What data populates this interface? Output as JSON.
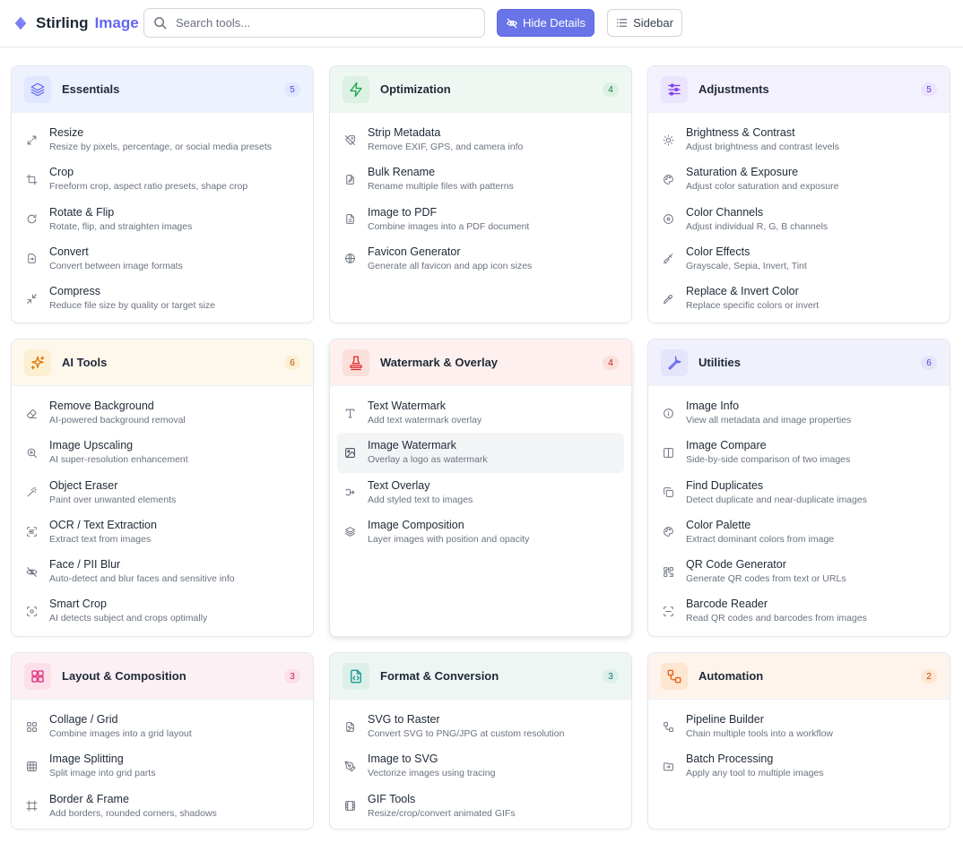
{
  "header": {
    "brand_primary": "Stirling",
    "brand_secondary": "Image",
    "search_placeholder": "Search tools...",
    "hide_details_label": "Hide Details",
    "sidebar_label": "Sidebar"
  },
  "colors": {
    "accent": "#6874e8",
    "brand_secondary": "#6366f1"
  },
  "categories": [
    {
      "title": "Essentials",
      "count": "5",
      "icon": "layers-icon",
      "head_bg": "#eef2ff",
      "icon_bg": "#e0e7ff",
      "icon_color": "#6366f1",
      "badge_bg": "#e0e7ff",
      "badge_color": "#4f46e5",
      "items": [
        {
          "name": "Resize",
          "desc": "Resize by pixels, percentage, or social media presets",
          "icon": "resize-icon"
        },
        {
          "name": "Crop",
          "desc": "Freeform crop, aspect ratio presets, shape crop",
          "icon": "crop-icon"
        },
        {
          "name": "Rotate & Flip",
          "desc": "Rotate, flip, and straighten images",
          "icon": "rotate-icon"
        },
        {
          "name": "Convert",
          "desc": "Convert between image formats",
          "icon": "convert-icon"
        },
        {
          "name": "Compress",
          "desc": "Reduce file size by quality or target size",
          "icon": "compress-icon"
        }
      ]
    },
    {
      "title": "Optimization",
      "count": "4",
      "icon": "bolt-icon",
      "head_bg": "#eef7f1",
      "icon_bg": "#dcf0e3",
      "icon_color": "#16a34a",
      "badge_bg": "#dcf0e3",
      "badge_color": "#15803d",
      "items": [
        {
          "name": "Strip Metadata",
          "desc": "Remove EXIF, GPS, and camera info",
          "icon": "tag-off-icon"
        },
        {
          "name": "Bulk Rename",
          "desc": "Rename multiple files with patterns",
          "icon": "file-edit-icon"
        },
        {
          "name": "Image to PDF",
          "desc": "Combine images into a PDF document",
          "icon": "file-text-icon"
        },
        {
          "name": "Favicon Generator",
          "desc": "Generate all favicon and app icon sizes",
          "icon": "globe-icon"
        }
      ]
    },
    {
      "title": "Adjustments",
      "count": "5",
      "icon": "sliders-icon",
      "head_bg": "#f4f1fe",
      "icon_bg": "#ebe4fd",
      "icon_color": "#7c3aed",
      "badge_bg": "#ebe4fd",
      "badge_color": "#6d28d9",
      "items": [
        {
          "name": "Brightness & Contrast",
          "desc": "Adjust brightness and contrast levels",
          "icon": "sun-icon"
        },
        {
          "name": "Saturation & Exposure",
          "desc": "Adjust color saturation and exposure",
          "icon": "palette-icon"
        },
        {
          "name": "Color Channels",
          "desc": "Adjust individual R, G, B channels",
          "icon": "target-icon"
        },
        {
          "name": "Color Effects",
          "desc": "Grayscale, Sepia, Invert, Tint",
          "icon": "brush-icon"
        },
        {
          "name": "Replace & Invert Color",
          "desc": "Replace specific colors or invert",
          "icon": "pipette-icon"
        }
      ]
    },
    {
      "title": "AI Tools",
      "count": "6",
      "icon": "sparkles-icon",
      "head_bg": "#fef8ec",
      "icon_bg": "#fdefd2",
      "icon_color": "#d97706",
      "badge_bg": "#fdefd2",
      "badge_color": "#b45309",
      "items": [
        {
          "name": "Remove Background",
          "desc": "AI-powered background removal",
          "icon": "eraser-icon"
        },
        {
          "name": "Image Upscaling",
          "desc": "AI super-resolution enhancement",
          "icon": "zoom-in-icon"
        },
        {
          "name": "Object Eraser",
          "desc": "Paint over unwanted elements",
          "icon": "wand-icon"
        },
        {
          "name": "OCR / Text Extraction",
          "desc": "Extract text from images",
          "icon": "scan-text-icon"
        },
        {
          "name": "Face / PII Blur",
          "desc": "Auto-detect and blur faces and sensitive info",
          "icon": "eye-off-icon"
        },
        {
          "name": "Smart Crop",
          "desc": "AI detects subject and crops optimally",
          "icon": "focus-icon"
        }
      ]
    },
    {
      "title": "Watermark & Overlay",
      "count": "4",
      "icon": "stamp-icon",
      "head_bg": "#fdf0ee",
      "icon_bg": "#fbdfdb",
      "icon_color": "#dc2626",
      "badge_bg": "#fbdfdb",
      "badge_color": "#b91c1c",
      "items": [
        {
          "name": "Text Watermark",
          "desc": "Add text watermark overlay",
          "icon": "type-icon"
        },
        {
          "name": "Image Watermark",
          "desc": "Overlay a logo as watermark",
          "icon": "image-icon"
        },
        {
          "name": "Text Overlay",
          "desc": "Add styled text to images",
          "icon": "text-cursor-icon"
        },
        {
          "name": "Image Composition",
          "desc": "Layer images with position and opacity",
          "icon": "layers-icon"
        }
      ]
    },
    {
      "title": "Utilities",
      "count": "6",
      "icon": "wrench-icon",
      "head_bg": "#f1f1fd",
      "icon_bg": "#e4e4fb",
      "icon_color": "#6366f1",
      "badge_bg": "#e4e4fb",
      "badge_color": "#4f46e5",
      "items": [
        {
          "name": "Image Info",
          "desc": "View all metadata and image properties",
          "icon": "info-icon"
        },
        {
          "name": "Image Compare",
          "desc": "Side-by-side comparison of two images",
          "icon": "columns-icon"
        },
        {
          "name": "Find Duplicates",
          "desc": "Detect duplicate and near-duplicate images",
          "icon": "copy-icon"
        },
        {
          "name": "Color Palette",
          "desc": "Extract dominant colors from image",
          "icon": "palette-icon"
        },
        {
          "name": "QR Code Generator",
          "desc": "Generate QR codes from text or URLs",
          "icon": "qr-code-icon"
        },
        {
          "name": "Barcode Reader",
          "desc": "Read QR codes and barcodes from images",
          "icon": "scan-icon"
        }
      ]
    },
    {
      "title": "Layout & Composition",
      "count": "3",
      "icon": "grid-icon",
      "head_bg": "#fdf0f5",
      "icon_bg": "#fbdfe9",
      "icon_color": "#db2777",
      "badge_bg": "#fbdfe9",
      "badge_color": "#be185d",
      "items": [
        {
          "name": "Collage / Grid",
          "desc": "Combine images into a grid layout",
          "icon": "layout-grid-icon"
        },
        {
          "name": "Image Splitting",
          "desc": "Split image into grid parts",
          "icon": "table-icon"
        },
        {
          "name": "Border & Frame",
          "desc": "Add borders, rounded corners, shadows",
          "icon": "frame-icon"
        }
      ]
    },
    {
      "title": "Format & Conversion",
      "count": "3",
      "icon": "file-code-icon",
      "head_bg": "#eef6f3",
      "icon_bg": "#dcefe8",
      "icon_color": "#0d9488",
      "badge_bg": "#dcefe8",
      "badge_color": "#0f766e",
      "items": [
        {
          "name": "SVG to Raster",
          "desc": "Convert SVG to PNG/JPG at custom resolution",
          "icon": "file-image-icon"
        },
        {
          "name": "Image to SVG",
          "desc": "Vectorize images using tracing",
          "icon": "pen-tool-icon"
        },
        {
          "name": "GIF Tools",
          "desc": "Resize/crop/convert animated GIFs",
          "icon": "film-icon"
        }
      ]
    },
    {
      "title": "Automation",
      "count": "2",
      "icon": "workflow-icon",
      "head_bg": "#fef4ec",
      "icon_bg": "#fde6d2",
      "icon_color": "#ea580c",
      "badge_bg": "#fde6d2",
      "badge_color": "#c2410c",
      "items": [
        {
          "name": "Pipeline Builder",
          "desc": "Chain multiple tools into a workflow",
          "icon": "workflow-icon"
        },
        {
          "name": "Batch Processing",
          "desc": "Apply any tool to multiple images",
          "icon": "folder-icon"
        }
      ]
    }
  ]
}
